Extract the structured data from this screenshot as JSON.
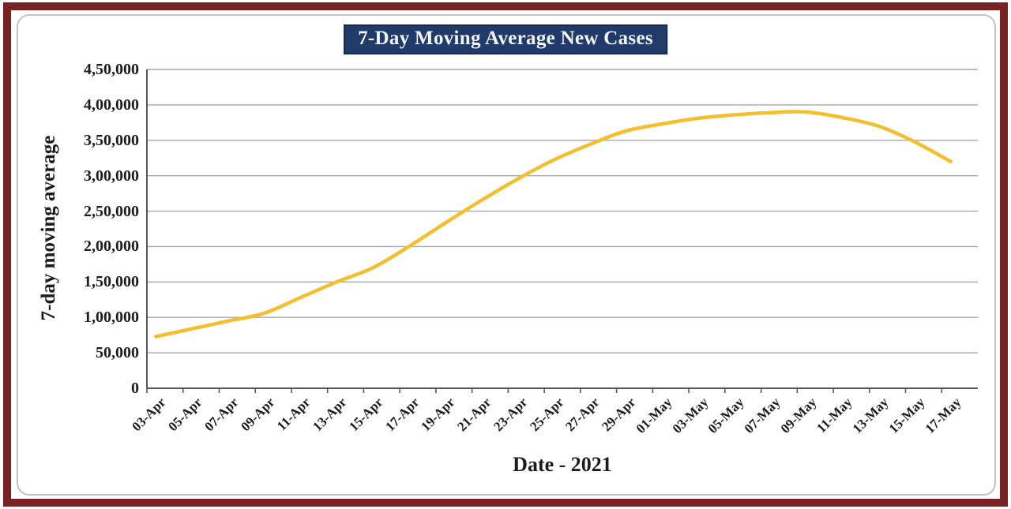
{
  "title": "7-Day Moving Average New Cases",
  "chart_data": {
    "type": "line",
    "title": "7-Day Moving Average New Cases",
    "xlabel": "Date - 2021",
    "ylabel": "7-day moving average",
    "categories": [
      "03-Apr",
      "05-Apr",
      "07-Apr",
      "09-Apr",
      "11-Apr",
      "13-Apr",
      "15-Apr",
      "17-Apr",
      "19-Apr",
      "21-Apr",
      "23-Apr",
      "25-Apr",
      "27-Apr",
      "29-Apr",
      "01-May",
      "03-May",
      "05-May",
      "07-May",
      "09-May",
      "11-May",
      "13-May",
      "15-May",
      "17-May"
    ],
    "values": [
      73000,
      84000,
      95000,
      106000,
      128000,
      150000,
      170000,
      200000,
      233000,
      265000,
      295000,
      322000,
      344000,
      363000,
      373000,
      381000,
      386000,
      389000,
      390000,
      382000,
      370000,
      348000,
      320000
    ],
    "ylim": [
      0,
      450000
    ],
    "ytick_step": 50000,
    "ytick_labels": [
      "0",
      "50,000",
      "1,00,000",
      "1,50,000",
      "2,00,000",
      "2,50,000",
      "3,00,000",
      "3,50,000",
      "4,00,000",
      "4,50,000"
    ],
    "grid": "horizontal",
    "legend": "none",
    "series_name": "7-Day Moving Average New Cases"
  },
  "colors": {
    "frame_maroon": "#7A2125",
    "card_border_gray": "#C2C3C7",
    "title_bg_navy": "#203A69",
    "title_border_navy": "#15284E",
    "title_text": "#F2F4F8",
    "line_gold": "#F3BF2F",
    "gridline_gray": "#A7A7AC",
    "axis_gray": "#58585B",
    "text_black": "#1C1C1E"
  }
}
